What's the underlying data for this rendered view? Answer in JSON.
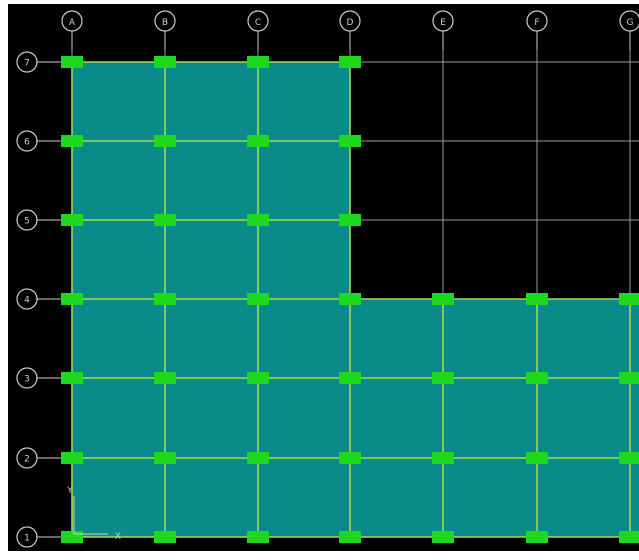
{
  "colors": {
    "frame": "#ffffff",
    "background": "#000000",
    "slab_fill": "#0b8a8a",
    "beam_line": "#a6d94c",
    "grid_line": "#9a9a9a",
    "column_marker": "#1ed81e",
    "bubble_stroke": "#cfcfcf",
    "bubble_text": "#cfcfcf"
  },
  "grid": {
    "columns": [
      {
        "label": "A"
      },
      {
        "label": "B"
      },
      {
        "label": "C"
      },
      {
        "label": "D"
      },
      {
        "label": "E"
      },
      {
        "label": "F"
      },
      {
        "label": "G"
      }
    ],
    "rows": [
      {
        "label": "7"
      },
      {
        "label": "6"
      },
      {
        "label": "5"
      },
      {
        "label": "4"
      },
      {
        "label": "3"
      },
      {
        "label": "2"
      },
      {
        "label": "1"
      }
    ]
  },
  "axes": {
    "x_label": "X",
    "y_label": "Y"
  }
}
